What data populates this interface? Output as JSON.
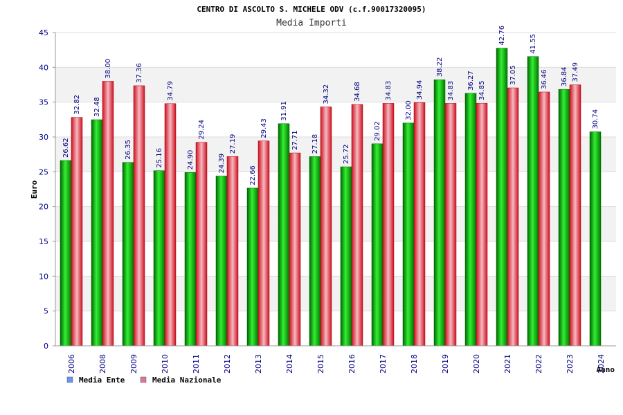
{
  "chart_data": {
    "type": "bar",
    "title": "CENTRO DI ASCOLTO S. MICHELE ODV (c.f.90017320095)",
    "subtitle": "Media Importi",
    "xlabel": "Anno",
    "ylabel": "Euro",
    "ylim": [
      0,
      45
    ],
    "yticks": [
      0,
      5,
      10,
      15,
      20,
      25,
      30,
      35,
      40,
      45
    ],
    "grid": true,
    "legend_position": "bottom-left",
    "categories": [
      "2006",
      "2008",
      "2009",
      "2010",
      "2011",
      "2012",
      "2013",
      "2014",
      "2015",
      "2016",
      "2017",
      "2018",
      "2019",
      "2020",
      "2021",
      "2022",
      "2023",
      "2024"
    ],
    "series": [
      {
        "name": "Media Ente",
        "color": "#00b000",
        "legend_color": "#6699ee",
        "values": [
          26.62,
          32.48,
          26.35,
          25.16,
          24.9,
          24.39,
          22.66,
          31.91,
          27.18,
          25.72,
          29.02,
          32.0,
          38.22,
          36.27,
          42.76,
          41.55,
          36.84,
          30.74
        ],
        "labels": [
          "26.62",
          "32.48",
          "26.35",
          "25.16",
          "24.90",
          "24.39",
          "22.66",
          "31.91",
          "27.18",
          "25.72",
          "29.02",
          "32.00",
          "38.22",
          "36.27",
          "42.76",
          "41.55",
          "36.84",
          "30.74"
        ]
      },
      {
        "name": "Media Nazionale",
        "color": "#e8283c",
        "legend_color": "#dd7799",
        "values": [
          32.82,
          38.0,
          37.36,
          34.79,
          29.24,
          27.19,
          29.43,
          27.71,
          34.32,
          34.68,
          34.83,
          34.94,
          34.83,
          34.85,
          37.05,
          36.46,
          37.49,
          null
        ],
        "labels": [
          "32.82",
          "38.00",
          "37.36",
          "34.79",
          "29.24",
          "27.19",
          "29.43",
          "27.71",
          "34.32",
          "34.68",
          "34.83",
          "34.94",
          "34.83",
          "34.85",
          "37.05",
          "36.46",
          "37.49",
          ""
        ]
      }
    ]
  }
}
